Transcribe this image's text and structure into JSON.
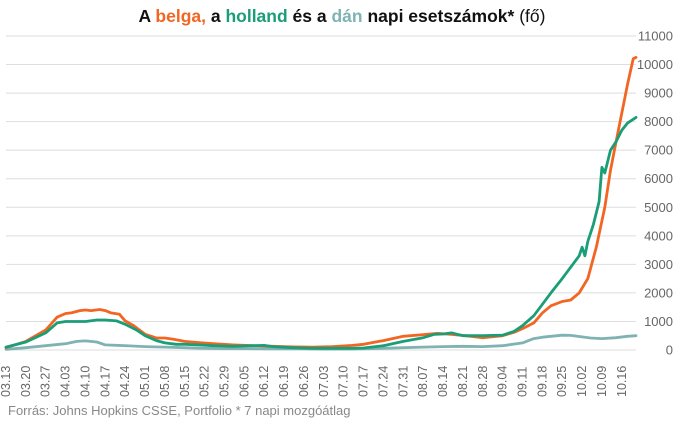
{
  "title_parts": {
    "p1": "A ",
    "belga": "belga,",
    "p2": " a ",
    "holland": "holland",
    "p3": " és a ",
    "dan": "dán",
    "p4": " napi esetszámok*",
    "p5": " (fő)"
  },
  "source": "Forrás: Johns Hopkins CSSE, Portfolio  * 7 napi mozgóátlag",
  "chart_data": {
    "type": "line",
    "title": "A belga, a holland és a dán napi esetszámok* (fő)",
    "ylim": [
      0,
      11000
    ],
    "yticks": [
      0,
      1000,
      2000,
      3000,
      4000,
      5000,
      6000,
      7000,
      8000,
      9000,
      10000,
      11000
    ],
    "ytick_labels": [
      "0",
      "1000",
      "2000",
      "3000",
      "4000",
      "5000",
      "6000",
      "7000",
      "8000",
      "9000",
      "10000",
      "11000"
    ],
    "x_tick_labels": [
      "03.13",
      "03.20",
      "03.27",
      "04.03",
      "04.10",
      "04.17",
      "04.24",
      "05.01",
      "05.08",
      "05.15",
      "05.22",
      "05.29",
      "06.05",
      "06.12",
      "06.19",
      "06.26",
      "07.03",
      "07.10",
      "07.17",
      "07.24",
      "07.31",
      "08.07",
      "08.14",
      "08.21",
      "08.28",
      "09.04",
      "09.11",
      "09.18",
      "09.25",
      "10.02",
      "10.09",
      "10.16"
    ],
    "x_start": "03.13",
    "x_end": "10.21",
    "grid": true,
    "colors": {
      "belga": "#f26522",
      "holland": "#1a9e77",
      "dan": "#7fb3b3"
    },
    "series": [
      {
        "name": "belga",
        "color": "#f26522",
        "points": [
          [
            "03.13",
            80
          ],
          [
            "03.20",
            300
          ],
          [
            "03.27",
            700
          ],
          [
            "03.31",
            1150
          ],
          [
            "04.03",
            1280
          ],
          [
            "04.05",
            1300
          ],
          [
            "04.08",
            1380
          ],
          [
            "04.10",
            1400
          ],
          [
            "04.12",
            1380
          ],
          [
            "04.15",
            1420
          ],
          [
            "04.17",
            1380
          ],
          [
            "04.19",
            1300
          ],
          [
            "04.22",
            1250
          ],
          [
            "04.24",
            1020
          ],
          [
            "04.27",
            850
          ],
          [
            "05.01",
            550
          ],
          [
            "05.05",
            420
          ],
          [
            "05.08",
            420
          ],
          [
            "05.11",
            380
          ],
          [
            "05.15",
            300
          ],
          [
            "05.20",
            260
          ],
          [
            "05.25",
            220
          ],
          [
            "06.01",
            180
          ],
          [
            "06.08",
            150
          ],
          [
            "06.15",
            130
          ],
          [
            "06.22",
            110
          ],
          [
            "06.29",
            100
          ],
          [
            "07.06",
            120
          ],
          [
            "07.13",
            160
          ],
          [
            "07.17",
            200
          ],
          [
            "07.24",
            330
          ],
          [
            "07.31",
            480
          ],
          [
            "08.07",
            540
          ],
          [
            "08.12",
            580
          ],
          [
            "08.17",
            550
          ],
          [
            "08.24",
            480
          ],
          [
            "08.28",
            430
          ],
          [
            "09.04",
            500
          ],
          [
            "09.08",
            620
          ],
          [
            "09.11",
            750
          ],
          [
            "09.15",
            950
          ],
          [
            "09.18",
            1300
          ],
          [
            "09.21",
            1550
          ],
          [
            "09.25",
            1700
          ],
          [
            "09.28",
            1750
          ],
          [
            "10.01",
            2000
          ],
          [
            "10.04",
            2500
          ],
          [
            "10.07",
            3600
          ],
          [
            "10.10",
            5000
          ],
          [
            "10.12",
            6300
          ],
          [
            "10.14",
            7300
          ],
          [
            "10.16",
            8300
          ],
          [
            "10.18",
            9300
          ],
          [
            "10.20",
            10200
          ],
          [
            "10.21",
            10250
          ]
        ]
      },
      {
        "name": "holland",
        "color": "#1a9e77",
        "points": [
          [
            "03.13",
            100
          ],
          [
            "03.20",
            280
          ],
          [
            "03.27",
            600
          ],
          [
            "03.31",
            950
          ],
          [
            "04.03",
            1000
          ],
          [
            "04.07",
            1000
          ],
          [
            "04.10",
            1000
          ],
          [
            "04.14",
            1050
          ],
          [
            "04.17",
            1050
          ],
          [
            "04.21",
            1020
          ],
          [
            "04.24",
            900
          ],
          [
            "04.28",
            700
          ],
          [
            "05.01",
            500
          ],
          [
            "05.05",
            330
          ],
          [
            "05.08",
            250
          ],
          [
            "05.12",
            200
          ],
          [
            "05.15",
            200
          ],
          [
            "05.20",
            180
          ],
          [
            "05.25",
            150
          ],
          [
            "06.01",
            130
          ],
          [
            "06.08",
            150
          ],
          [
            "06.12",
            160
          ],
          [
            "06.15",
            120
          ],
          [
            "06.22",
            80
          ],
          [
            "06.29",
            60
          ],
          [
            "07.06",
            60
          ],
          [
            "07.13",
            60
          ],
          [
            "07.17",
            70
          ],
          [
            "07.24",
            150
          ],
          [
            "07.31",
            300
          ],
          [
            "08.07",
            430
          ],
          [
            "08.11",
            550
          ],
          [
            "08.14",
            560
          ],
          [
            "08.17",
            600
          ],
          [
            "08.21",
            500
          ],
          [
            "08.28",
            500
          ],
          [
            "09.04",
            520
          ],
          [
            "09.08",
            650
          ],
          [
            "09.11",
            850
          ],
          [
            "09.15",
            1200
          ],
          [
            "09.18",
            1600
          ],
          [
            "09.21",
            2000
          ],
          [
            "09.25",
            2500
          ],
          [
            "09.28",
            2900
          ],
          [
            "10.01",
            3300
          ],
          [
            "10.02",
            3600
          ],
          [
            "10.03",
            3300
          ],
          [
            "10.04",
            3800
          ],
          [
            "10.06",
            4400
          ],
          [
            "10.08",
            5200
          ],
          [
            "10.09",
            6400
          ],
          [
            "10.10",
            6200
          ],
          [
            "10.12",
            7000
          ],
          [
            "10.14",
            7300
          ],
          [
            "10.16",
            7700
          ],
          [
            "10.18",
            7950
          ],
          [
            "10.21",
            8150
          ]
        ]
      },
      {
        "name": "dán",
        "color": "#7fb3b3",
        "points": [
          [
            "03.13",
            20
          ],
          [
            "03.20",
            80
          ],
          [
            "03.27",
            150
          ],
          [
            "04.03",
            220
          ],
          [
            "04.07",
            300
          ],
          [
            "04.10",
            320
          ],
          [
            "04.14",
            280
          ],
          [
            "04.17",
            180
          ],
          [
            "04.24",
            150
          ],
          [
            "05.01",
            120
          ],
          [
            "05.08",
            100
          ],
          [
            "05.15",
            80
          ],
          [
            "05.22",
            60
          ],
          [
            "05.29",
            50
          ],
          [
            "06.05",
            50
          ],
          [
            "06.12",
            40
          ],
          [
            "06.19",
            40
          ],
          [
            "06.26",
            40
          ],
          [
            "07.03",
            30
          ],
          [
            "07.10",
            30
          ],
          [
            "07.17",
            40
          ],
          [
            "07.24",
            60
          ],
          [
            "07.31",
            80
          ],
          [
            "08.07",
            100
          ],
          [
            "08.14",
            120
          ],
          [
            "08.21",
            130
          ],
          [
            "08.28",
            120
          ],
          [
            "09.04",
            150
          ],
          [
            "09.11",
            250
          ],
          [
            "09.15",
            400
          ],
          [
            "09.18",
            450
          ],
          [
            "09.21",
            480
          ],
          [
            "09.25",
            520
          ],
          [
            "09.28",
            510
          ],
          [
            "10.02",
            460
          ],
          [
            "10.05",
            420
          ],
          [
            "10.09",
            400
          ],
          [
            "10.14",
            430
          ],
          [
            "10.18",
            480
          ],
          [
            "10.21",
            500
          ]
        ]
      }
    ]
  }
}
